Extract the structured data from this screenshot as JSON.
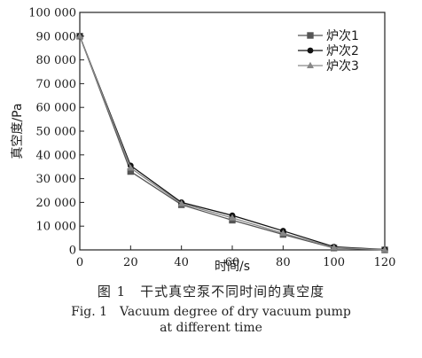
{
  "chart_data": {
    "type": "line",
    "xlabel": "时间/s",
    "ylabel": "真空度/Pa",
    "x": [
      0,
      20,
      40,
      60,
      80,
      100,
      120
    ],
    "xlim": [
      0,
      120
    ],
    "ylim": [
      0,
      100000
    ],
    "xticks": [
      "0",
      "20",
      "40",
      "60",
      "80",
      "100",
      "120"
    ],
    "yticks": [
      "0",
      "10 000",
      "20 000",
      "30 000",
      "40 000",
      "50 000",
      "60 000",
      "70 000",
      "80 000",
      "90 000",
      "100 000"
    ],
    "grid": false,
    "legend_position": "top-right",
    "series": [
      {
        "name": "炉次1",
        "marker": "square",
        "values": [
          90000,
          33000,
          19000,
          12500,
          6500,
          800,
          0
        ]
      },
      {
        "name": "炉次2",
        "marker": "circle",
        "values": [
          90000,
          35500,
          20000,
          14500,
          8000,
          1300,
          200
        ]
      },
      {
        "name": "炉次3",
        "marker": "triangle",
        "values": [
          90000,
          34500,
          19500,
          13500,
          7000,
          1000,
          100
        ]
      }
    ],
    "colors": {
      "series": [
        "#555555",
        "#111111",
        "#888888"
      ],
      "axis": "#222222"
    }
  },
  "caption": {
    "zh": "图 1　干式真空泵不同时间的真空度",
    "en_line1": "Fig. 1　Vacuum degree of dry vacuum pump",
    "en_line2": "at different time"
  }
}
